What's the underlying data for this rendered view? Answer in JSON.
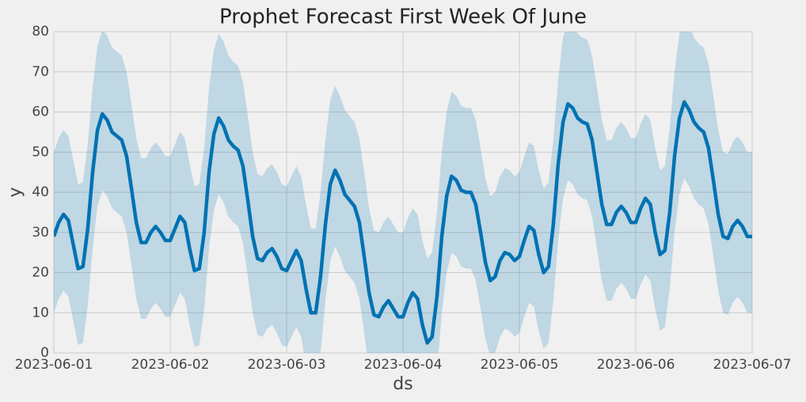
{
  "chart_data": {
    "type": "line",
    "title": "Prophet Forecast First Week Of June",
    "x_label": "ds",
    "y_label": "y",
    "color": "#0072B2",
    "band_color": "#0072B2",
    "grid": true,
    "xlim": [
      0,
      144
    ],
    "ylim": [
      0,
      80
    ],
    "xticks": [
      {
        "value": 0,
        "label": "2023-06-01"
      },
      {
        "value": 24,
        "label": "2023-06-02"
      },
      {
        "value": 48,
        "label": "2023-06-03"
      },
      {
        "value": 72,
        "label": "2023-06-04"
      },
      {
        "value": 96,
        "label": "2023-06-05"
      },
      {
        "value": 120,
        "label": "2023-06-06"
      },
      {
        "value": 144,
        "label": "2023-06-07"
      }
    ],
    "yticks": [
      0,
      10,
      20,
      30,
      40,
      50,
      60,
      70,
      80
    ],
    "x": [
      0,
      1,
      2,
      3,
      4,
      5,
      6,
      7,
      8,
      9,
      10,
      11,
      12,
      13,
      14,
      15,
      16,
      17,
      18,
      19,
      20,
      21,
      22,
      23,
      24,
      25,
      26,
      27,
      28,
      29,
      30,
      31,
      32,
      33,
      34,
      35,
      36,
      37,
      38,
      39,
      40,
      41,
      42,
      43,
      44,
      45,
      46,
      47,
      48,
      49,
      50,
      51,
      52,
      53,
      54,
      55,
      56,
      57,
      58,
      59,
      60,
      61,
      62,
      63,
      64,
      65,
      66,
      67,
      68,
      69,
      70,
      71,
      72,
      73,
      74,
      75,
      76,
      77,
      78,
      79,
      80,
      81,
      82,
      83,
      84,
      85,
      86,
      87,
      88,
      89,
      90,
      91,
      92,
      93,
      94,
      95,
      96,
      97,
      98,
      99,
      100,
      101,
      102,
      103,
      104,
      105,
      106,
      107,
      108,
      109,
      110,
      111,
      112,
      113,
      114,
      115,
      116,
      117,
      118,
      119,
      120,
      121,
      122,
      123,
      124,
      125,
      126,
      127,
      128,
      129,
      130,
      131,
      132,
      133,
      134,
      135,
      136,
      137,
      138,
      139,
      140,
      141,
      142,
      143,
      144
    ],
    "values": [
      29,
      32.5,
      34.5,
      33,
      27,
      21,
      21.5,
      31,
      45,
      55.5,
      59.5,
      58,
      55,
      54,
      53,
      49,
      41,
      32.5,
      27.5,
      27.5,
      30,
      31.5,
      30,
      28,
      28,
      31,
      34,
      32.5,
      26,
      20.5,
      21,
      30,
      45,
      54.5,
      58.5,
      56.5,
      53,
      51.5,
      50.5,
      46.5,
      38,
      29,
      23.5,
      23,
      25,
      26,
      24,
      21,
      20.5,
      23,
      25.5,
      23,
      16,
      10,
      10,
      19,
      32,
      42,
      45.5,
      43,
      39.5,
      38,
      36.5,
      32.5,
      24,
      15,
      9.5,
      9,
      11.5,
      13,
      11,
      9,
      9,
      12.5,
      15,
      13.5,
      7,
      2.5,
      4,
      14,
      29,
      39,
      44,
      43,
      40.5,
      40,
      40,
      37,
      30,
      22.5,
      18,
      19,
      23,
      25,
      24.5,
      23,
      24,
      28,
      31.5,
      30.5,
      24.5,
      20,
      21.5,
      32,
      47,
      57.5,
      62,
      61,
      58.5,
      57.5,
      57,
      53,
      45,
      37,
      32,
      32,
      35,
      36.5,
      35,
      32.5,
      32.5,
      36,
      38.5,
      37,
      30,
      24.5,
      25.5,
      35,
      49,
      58.5,
      62.5,
      60.5,
      57.5,
      56,
      55,
      51,
      43,
      34.5,
      29,
      28.5,
      31.5,
      33,
      31.5,
      29,
      29
    ],
    "upper": [
      50,
      53.5,
      55.5,
      54,
      48,
      42,
      42.5,
      52,
      66,
      76.5,
      80.5,
      79,
      76,
      75,
      74,
      70,
      62,
      53.5,
      48.5,
      48.5,
      51,
      52.5,
      51,
      49,
      49,
      52,
      55,
      53.5,
      47,
      41.5,
      42,
      51,
      66,
      75.5,
      79.5,
      77.5,
      74,
      72.5,
      71.5,
      67.5,
      59,
      50,
      44.5,
      44,
      46,
      47,
      45,
      42,
      41.5,
      44,
      46.5,
      44,
      37,
      31,
      31,
      40,
      53,
      63,
      66.5,
      64,
      60.5,
      59,
      57.5,
      53.5,
      45,
      36,
      30.5,
      30,
      32.5,
      34,
      32,
      30,
      30,
      33.5,
      36,
      34.5,
      28,
      23.5,
      25,
      35,
      50,
      60,
      65,
      64,
      61.5,
      61,
      61,
      58,
      51,
      43.5,
      39,
      40,
      44,
      46,
      45.5,
      44,
      45,
      49,
      52.5,
      51.5,
      45.5,
      41,
      42.5,
      53,
      68,
      78.5,
      83,
      82,
      79.5,
      78.5,
      78,
      74,
      66,
      58,
      53,
      53,
      56,
      57.5,
      56,
      53.5,
      53.5,
      57,
      59.5,
      58,
      51,
      45.5,
      46.5,
      56,
      70,
      79.5,
      83.5,
      81.5,
      78.5,
      77,
      76,
      72,
      64,
      55.5,
      50,
      49.5,
      52.5,
      54,
      52.5,
      50,
      50
    ],
    "lower": [
      10,
      13.5,
      15.5,
      14,
      8,
      2,
      2.5,
      12,
      26,
      36.5,
      40.5,
      39,
      36,
      35,
      34,
      30,
      22,
      13.5,
      8.5,
      8.5,
      11,
      12.5,
      11,
      9,
      9,
      12,
      15,
      13.5,
      7,
      1.5,
      2,
      11,
      26,
      35.5,
      39.5,
      37.5,
      34,
      32.5,
      31.5,
      27.5,
      19,
      10,
      4.5,
      4,
      6,
      7,
      5,
      2,
      1.5,
      4,
      6.5,
      4,
      -3,
      -9,
      -9,
      0,
      13,
      23,
      26.5,
      24,
      20.5,
      19,
      17.5,
      13.5,
      5,
      -4,
      -9.5,
      -10,
      -7.5,
      -6,
      -8,
      -10,
      -10,
      -6.5,
      -4,
      -5.5,
      -12,
      -16.5,
      -15,
      -5,
      10,
      20,
      25,
      24,
      21.5,
      21,
      21,
      18,
      11,
      3.5,
      -1,
      0,
      4,
      6,
      5.5,
      4,
      5,
      9,
      12.5,
      11.5,
      5.5,
      1,
      2.5,
      13,
      28,
      38.5,
      43,
      42,
      39.5,
      38.5,
      38,
      34,
      26,
      18,
      13,
      13,
      16,
      17.5,
      16,
      13.5,
      13.5,
      17,
      19.5,
      18,
      11,
      5.5,
      6.5,
      16,
      30,
      39.5,
      43.5,
      41.5,
      38.5,
      37,
      36,
      32,
      24,
      15.5,
      10,
      9.5,
      12.5,
      14,
      12.5,
      10,
      10
    ]
  }
}
